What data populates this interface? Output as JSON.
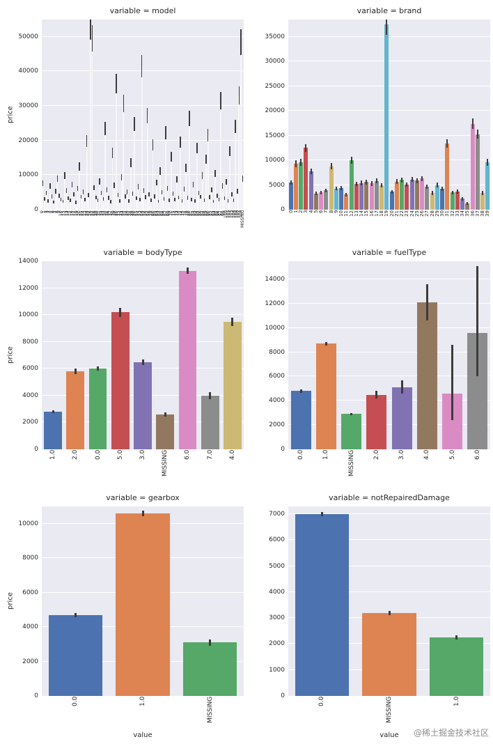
{
  "page": {
    "watermark": "@稀土掘金技术社区"
  },
  "palette": [
    "#4c72b0",
    "#dd8452",
    "#55a868",
    "#c44e52",
    "#8172b3",
    "#937860",
    "#da8bc3",
    "#8c8c8c",
    "#ccb974",
    "#64b5cd"
  ],
  "style": {
    "axes_bg": "#eaeaf2",
    "grid_color": "#ffffff",
    "error_color": "#3b3b3b",
    "text_color": "#262626"
  },
  "chart_data": [
    {
      "type": "bar",
      "title": "variable = model",
      "ylabel": "price",
      "categories_range": [
        0,
        108
      ],
      "extra_category": "MISSING",
      "values": [
        7600,
        3200,
        4800,
        2600,
        6800,
        3900,
        2200,
        5400,
        8900,
        4100,
        3000,
        2400,
        9800,
        5600,
        3300,
        2800,
        7200,
        4500,
        2100,
        6200,
        12500,
        3700,
        5100,
        2900,
        19800,
        4300,
        53200,
        49600,
        6400,
        3500,
        2700,
        8200,
        4900,
        3100,
        23500,
        5800,
        3400,
        2300,
        16400,
        7100,
        36500,
        4200,
        2600,
        9400,
        30700,
        3800,
        5200,
        2500,
        13600,
        4700,
        24800,
        3300,
        6600,
        2900,
        41500,
        5500,
        3600,
        27200,
        4400,
        2800,
        18700,
        3900,
        7800,
        2400,
        11200,
        5000,
        3200,
        22300,
        6100,
        2700,
        15300,
        4600,
        2900,
        8700,
        3500,
        19500,
        2600,
        5900,
        12100,
        3400,
        26400,
        3000,
        7300,
        2500,
        17800,
        4800,
        3700,
        9900,
        2800,
        14600,
        21500,
        3600,
        5700,
        2400,
        10400,
        4100,
        2900,
        31500,
        6800,
        3300,
        8100,
        2600,
        16900,
        4400,
        2700,
        24100,
        5300,
        33000,
        48500,
        9000
      ],
      "err_frac": 0.07,
      "err_base": 300,
      "ylim": [
        0,
        55000
      ],
      "yticks": [
        0,
        10000,
        20000,
        30000,
        40000,
        50000
      ],
      "bar_color": "#f7f7fa",
      "bar_frac": 0.75,
      "xtick_h": 52,
      "xtick_font": 6,
      "err_w": 1.5,
      "grid": true,
      "legend": false
    },
    {
      "type": "bar",
      "title": "variable = brand",
      "ylabel": "",
      "categories_range": [
        0,
        39
      ],
      "values": [
        5500,
        9300,
        9600,
        12500,
        7800,
        3300,
        3500,
        3900,
        8800,
        4300,
        4400,
        3100,
        10000,
        5200,
        5400,
        5600,
        5300,
        5800,
        4900,
        37500,
        3600,
        5700,
        6000,
        5100,
        6100,
        5900,
        6300,
        4600,
        3400,
        5000,
        4200,
        13400,
        3500,
        3700,
        2200,
        1300,
        17400,
        15300,
        3400,
        9600
      ],
      "err_frac": 0.05,
      "err_base": 200,
      "ylim": [
        0,
        38500
      ],
      "yticks": [
        0,
        5000,
        10000,
        15000,
        20000,
        25000,
        30000,
        35000
      ],
      "bar_frac": 0.8,
      "xtick_h": 30,
      "xtick_font": 7,
      "err_w": 2,
      "grid": true,
      "legend": false
    },
    {
      "type": "bar",
      "title": "variable = bodyType",
      "ylabel": "price",
      "categories": [
        "1.0",
        "2.0",
        "0.0",
        "5.0",
        "3.0",
        "MISSING",
        "6.0",
        "7.0",
        "4.0"
      ],
      "values": [
        2800,
        5800,
        6000,
        10200,
        6500,
        2600,
        13300,
        4000,
        9500
      ],
      "errors": [
        100,
        200,
        150,
        350,
        200,
        150,
        250,
        250,
        300
      ],
      "ylim": [
        0,
        14000
      ],
      "yticks": [
        0,
        2000,
        4000,
        6000,
        8000,
        10000,
        12000,
        14000
      ],
      "bar_frac": 0.8,
      "xtick_h": 48,
      "xtick_font": 9,
      "err_w": 3,
      "grid": true,
      "legend": false
    },
    {
      "type": "bar",
      "title": "variable = fuelType",
      "ylabel": "",
      "categories": [
        "0.0",
        "1.0",
        "MISSING",
        "2.0",
        "3.0",
        "4.0",
        "5.0",
        "6.0"
      ],
      "values": [
        4800,
        8700,
        2900,
        4500,
        5100,
        12100,
        4600,
        9600
      ],
      "err_lo": [
        4650,
        8550,
        2800,
        4200,
        4600,
        10600,
        2400,
        6050
      ],
      "err_hi": [
        4950,
        8850,
        3000,
        4800,
        5700,
        13600,
        8600,
        15100
      ],
      "ylim": [
        0,
        15500
      ],
      "yticks": [
        0,
        2000,
        4000,
        6000,
        8000,
        10000,
        12000,
        14000
      ],
      "bar_frac": 0.8,
      "xtick_h": 48,
      "xtick_font": 9,
      "err_w": 3,
      "grid": true,
      "legend": false
    },
    {
      "type": "bar",
      "title": "variable = gearbox",
      "ylabel": "price",
      "xlabel": "value",
      "categories": [
        "0.0",
        "1.0",
        "MISSING"
      ],
      "values": [
        4700,
        10600,
        3100
      ],
      "errors": [
        120,
        150,
        180
      ],
      "ylim": [
        0,
        11000
      ],
      "yticks": [
        0,
        2000,
        4000,
        6000,
        8000,
        10000
      ],
      "bar_frac": 0.8,
      "xtick_h": 48,
      "xtick_font": 9,
      "err_w": 3,
      "grid": true,
      "legend": false
    },
    {
      "type": "bar",
      "title": "variable = notRepairedDamage",
      "ylabel": "",
      "xlabel": "value",
      "categories": [
        "0.0",
        "MISSING",
        "1.0"
      ],
      "values": [
        7000,
        3200,
        2250
      ],
      "errors": [
        80,
        80,
        80
      ],
      "ylim": [
        0,
        7300
      ],
      "yticks": [
        0,
        1000,
        2000,
        3000,
        4000,
        5000,
        6000,
        7000
      ],
      "bar_frac": 0.8,
      "xtick_h": 48,
      "xtick_font": 9,
      "err_w": 3,
      "grid": true,
      "legend": false
    }
  ]
}
